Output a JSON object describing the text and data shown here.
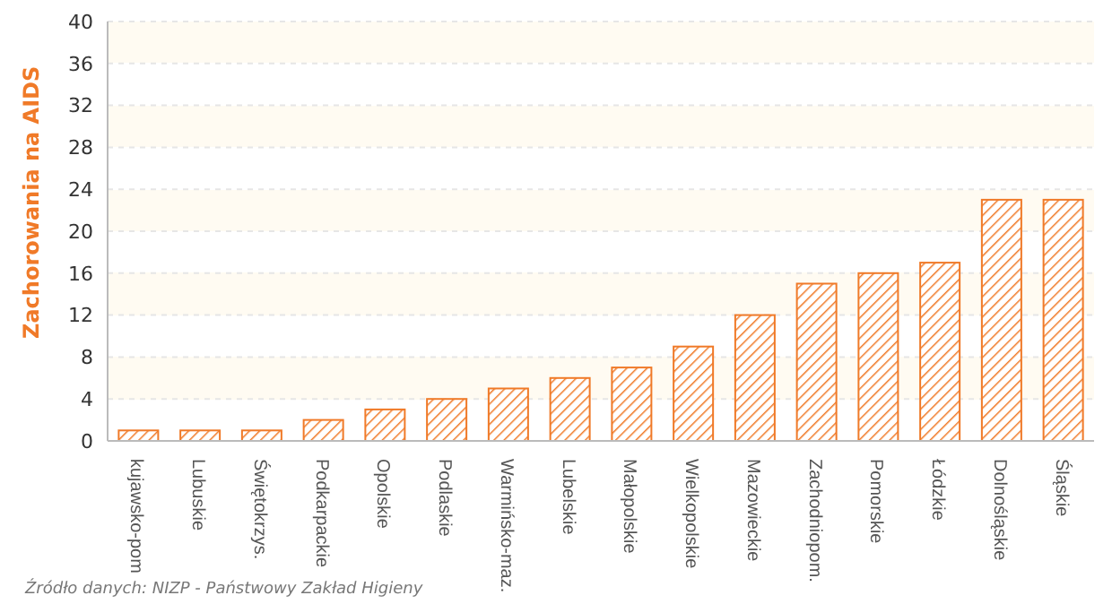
{
  "chart_data": {
    "type": "bar",
    "ylabel": "Zachorowania na AIDS",
    "categories": [
      "kujawsko-pom",
      "Lubuskie",
      "Świętokrzys.",
      "Podkarpackie",
      "Opolskie",
      "Podlaskie",
      "Warmińsko-maz.",
      "Lubelskie",
      "Małopolskie",
      "Wielkopolskie",
      "Mazowieckie",
      "Zachodniopom.",
      "Pomorskie",
      "Łódzkie",
      "Dolnośląskie",
      "Śląskie"
    ],
    "values": [
      1,
      1,
      1,
      2,
      3,
      4,
      5,
      6,
      7,
      9,
      12,
      15,
      16,
      17,
      23,
      23
    ],
    "color": "#f07a28",
    "ylim": [
      0,
      40
    ],
    "yticks": [
      0,
      4,
      8,
      12,
      16,
      20,
      24,
      28,
      32,
      36,
      40
    ],
    "grid": "y",
    "annotations": [
      "Źródło danych: NIZP - Państwowy Zakład Higieny"
    ]
  }
}
